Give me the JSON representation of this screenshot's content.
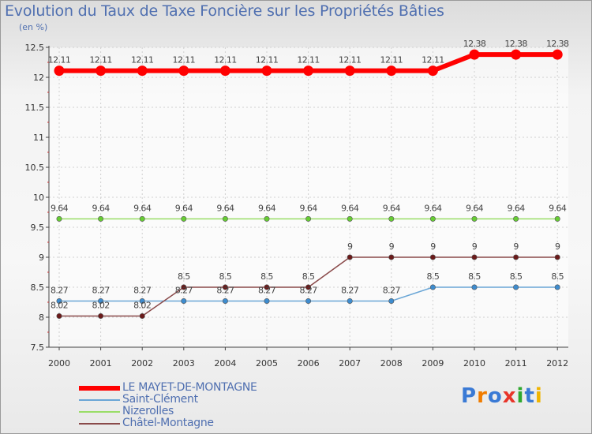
{
  "header": {
    "title": "Evolution du Taux de Taxe Foncière sur les Propriétés Bâties",
    "unit": "(en %)"
  },
  "chart_data": {
    "type": "line",
    "title": "Evolution du Taux de Taxe Foncière sur les Propriétés Bâties",
    "ylabel": "(en %)",
    "xlabel": "",
    "ylim": [
      7.5,
      12.5
    ],
    "yticks": [
      7.5,
      8,
      8.5,
      9,
      9.5,
      10,
      10.5,
      11,
      11.5,
      12,
      12.5
    ],
    "ytick_labels": [
      "7.5",
      "8",
      "8.5",
      "9",
      "9.5",
      "10",
      "10.5",
      "11",
      "11.5",
      "12",
      "12.5"
    ],
    "categories": [
      "2000",
      "2001",
      "2002",
      "2003",
      "2004",
      "2005",
      "2006",
      "2007",
      "2008",
      "2009",
      "2010",
      "2011",
      "2012"
    ],
    "series": [
      {
        "name": "LE MAYET-DE-MONTAGNE",
        "color": "#ff0000",
        "values": [
          12.11,
          12.11,
          12.11,
          12.11,
          12.11,
          12.11,
          12.11,
          12.11,
          12.11,
          12.11,
          12.38,
          12.38,
          12.38
        ],
        "labels": [
          "12.11",
          "12.11",
          "12.11",
          "12.11",
          "12.11",
          "12.11",
          "12.11",
          "12.11",
          "12.11",
          "12.11",
          "12.38",
          "12.38",
          "12.38"
        ]
      },
      {
        "name": "Saint-Clément",
        "color": "#6aa6d6",
        "marker_color": "#3d8ccf",
        "values": [
          8.27,
          8.27,
          8.27,
          8.27,
          8.27,
          8.27,
          8.27,
          8.27,
          8.27,
          8.5,
          8.5,
          8.5,
          8.5
        ],
        "labels": [
          "8.27",
          "8.27",
          "8.27",
          "8.27",
          "8.27",
          "8.27",
          "8.27",
          "8.27",
          "8.27",
          "8.5",
          "8.5",
          "8.5",
          "8.5"
        ]
      },
      {
        "name": "Nizerolles",
        "color": "#99dd66",
        "marker_color": "#66cc33",
        "values": [
          9.64,
          9.64,
          9.64,
          9.64,
          9.64,
          9.64,
          9.64,
          9.64,
          9.64,
          9.64,
          9.64,
          9.64,
          9.64
        ],
        "labels": [
          "9.64",
          "9.64",
          "9.64",
          "9.64",
          "9.64",
          "9.64",
          "9.64",
          "9.64",
          "9.64",
          "9.64",
          "9.64",
          "9.64",
          "9.64"
        ]
      },
      {
        "name": "Châtel-Montagne",
        "color": "#8a4a4a",
        "marker_color": "#6b1a1a",
        "values": [
          8.02,
          8.02,
          8.02,
          8.5,
          8.5,
          8.5,
          8.5,
          9,
          9,
          9,
          9,
          9,
          9
        ],
        "labels": [
          "8.02",
          "8.02",
          "8.02",
          "8.5",
          "8.5",
          "8.5",
          "8.5",
          "9",
          "9",
          "9",
          "9",
          "9",
          "9"
        ]
      }
    ],
    "legend_position": "bottom-left"
  },
  "logo": {
    "text": "Proxiti",
    "letters": [
      "P",
      "r",
      "o",
      "x",
      "i",
      "t",
      "i"
    ],
    "colors": [
      "#3a7ad5",
      "#f07c00",
      "#3a7ad5",
      "#e8352a",
      "#2fa82f",
      "#3a7ad5",
      "#f0b400"
    ]
  }
}
